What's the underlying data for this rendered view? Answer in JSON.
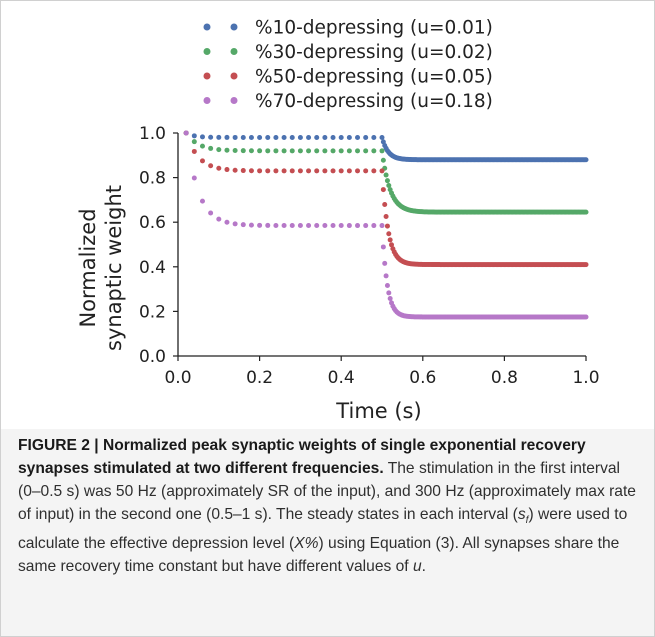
{
  "chart_data": {
    "type": "scatter",
    "title": "",
    "xlabel": "Time (s)",
    "ylabel_line1": "Normalized",
    "ylabel_line2": "synaptic weight",
    "xlim": [
      0.0,
      1.0
    ],
    "ylim": [
      0.0,
      1.0
    ],
    "xticks": [
      "0.0",
      "0.2",
      "0.4",
      "0.6",
      "0.8",
      "1.0"
    ],
    "yticks": [
      "0.0",
      "0.2",
      "0.4",
      "0.6",
      "0.8",
      "1.0"
    ],
    "grid": false,
    "legend_position": "top",
    "switch_time": 0.5,
    "series": [
      {
        "name": "%10-depressing (u=0.01)",
        "color": "#4c72b0",
        "steady1": 0.98,
        "steady2": 0.88,
        "tau1": 0.02,
        "tau2": 0.015
      },
      {
        "name": "%30-depressing (u=0.02)",
        "color": "#55a868",
        "steady1": 0.92,
        "steady2": 0.645,
        "tau1": 0.03,
        "tau2": 0.02
      },
      {
        "name": "%50-depressing (u=0.05)",
        "color": "#c44e52",
        "steady1": 0.83,
        "steady2": 0.41,
        "tau1": 0.03,
        "tau2": 0.015
      },
      {
        "name": "%70-depressing (u=0.18)",
        "color": "#b678c8",
        "steady1": 0.585,
        "steady2": 0.175,
        "tau1": 0.03,
        "tau2": 0.0125
      }
    ]
  },
  "caption": {
    "label": "FIGURE 2 | Normalized peak synaptic weights of single exponential recovery synapses stimulated at two different frequencies.",
    "text_1": " The stimulation in the first interval (0–0.5 s) was 50 Hz (approximately SR of the input), and 300 Hz (approximately max rate of input) in the second one (0.5–1 s). The steady states in each interval (",
    "s_symbol": "s",
    "s_subscript": "f",
    "text_2": ") were used to calculate the effective depression level (",
    "x_symbol": "X%",
    "text_3": ") using Equation (3). All synapses share the same recovery time constant but have different values of ",
    "u_symbol": "u",
    "text_4": "."
  }
}
